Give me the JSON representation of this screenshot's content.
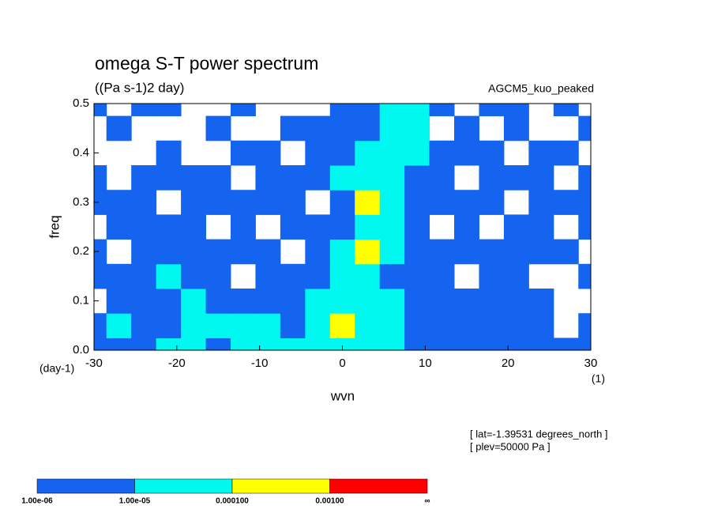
{
  "chart_data": {
    "type": "contour",
    "title": "omega S-T power spectrum",
    "subtitle": "((Pa s-1)2 day)",
    "annotation": "AGCM5_kuo_peaked",
    "x_label": "wvn",
    "y_label": "freq",
    "x_unit": "(1)",
    "y_unit": "(day-1)",
    "notes": [
      "[ lat=-1.39531 degrees_north ]",
      "[ plev=50000 Pa ]"
    ],
    "xlim": [
      -30,
      30
    ],
    "ylim": [
      0,
      0.5
    ],
    "xticks": [
      -30,
      -20,
      -10,
      0,
      10,
      20,
      30
    ],
    "yticks": [
      {
        "value": 0,
        "label": "0.0"
      },
      0.1,
      0.2,
      0.3,
      0.4,
      0.5
    ],
    "x": [
      -30,
      -27,
      -24,
      -21,
      -18,
      -15,
      -12,
      -9,
      -6,
      -3,
      0,
      3,
      6,
      9,
      12,
      15,
      18,
      21,
      24,
      27,
      30
    ],
    "y": [
      0,
      0.05,
      0.1,
      0.15,
      0.2,
      0.25,
      0.3,
      0.35,
      0.4,
      0.45,
      0.5
    ],
    "z": [
      [
        3e-06,
        3e-06,
        3e-06,
        3e-05,
        3e-05,
        3e-06,
        3e-05,
        3e-05,
        3e-05,
        3e-05,
        3e-05,
        3e-05,
        3e-05,
        3e-06,
        3e-06,
        3e-06,
        3e-06,
        3e-06,
        3e-06,
        3e-06,
        3e-06
      ],
      [
        3e-06,
        3e-05,
        3e-06,
        3e-06,
        3e-05,
        3e-05,
        3e-05,
        3e-05,
        3e-06,
        3e-05,
        0.0003,
        3e-05,
        3e-05,
        3e-06,
        3e-06,
        3e-06,
        3e-06,
        3e-06,
        3e-06,
        5e-07,
        3e-06
      ],
      [
        5e-07,
        3e-06,
        3e-06,
        3e-06,
        3e-05,
        3e-06,
        3e-06,
        3e-06,
        3e-06,
        3e-05,
        3e-05,
        3e-05,
        3e-05,
        3e-06,
        3e-06,
        3e-06,
        3e-06,
        3e-06,
        3e-06,
        5e-07,
        5e-07
      ],
      [
        3e-06,
        3e-06,
        3e-06,
        3e-05,
        3e-06,
        3e-06,
        5e-07,
        3e-06,
        3e-06,
        3e-06,
        3e-05,
        3e-05,
        3e-06,
        3e-06,
        3e-06,
        5e-07,
        3e-06,
        3e-06,
        5e-07,
        5e-07,
        3e-06
      ],
      [
        3e-06,
        5e-07,
        3e-06,
        3e-06,
        3e-06,
        3e-06,
        3e-06,
        3e-06,
        5e-07,
        3e-06,
        3e-05,
        0.0003,
        3e-05,
        3e-06,
        3e-06,
        3e-06,
        3e-06,
        3e-06,
        3e-06,
        3e-06,
        5e-07
      ],
      [
        5e-07,
        3e-06,
        3e-06,
        3e-06,
        3e-06,
        5e-07,
        3e-06,
        5e-07,
        3e-06,
        3e-06,
        3e-06,
        3e-05,
        3e-05,
        3e-06,
        5e-07,
        3e-06,
        5e-07,
        3e-06,
        3e-06,
        5e-07,
        3e-06
      ],
      [
        3e-06,
        3e-06,
        3e-06,
        5e-07,
        3e-06,
        3e-06,
        3e-06,
        3e-06,
        3e-06,
        5e-07,
        3e-06,
        0.0003,
        3e-05,
        3e-06,
        3e-06,
        3e-06,
        3e-06,
        5e-07,
        3e-06,
        3e-06,
        3e-06
      ],
      [
        3e-06,
        5e-07,
        3e-06,
        3e-06,
        3e-06,
        3e-06,
        5e-07,
        3e-06,
        3e-06,
        3e-06,
        3e-05,
        3e-05,
        3e-05,
        3e-06,
        3e-06,
        5e-07,
        3e-06,
        3e-06,
        3e-06,
        5e-07,
        3e-06
      ],
      [
        5e-07,
        5e-07,
        5e-07,
        3e-06,
        5e-07,
        5e-07,
        3e-06,
        3e-06,
        5e-07,
        3e-06,
        3e-06,
        3e-05,
        3e-05,
        3e-05,
        3e-06,
        3e-06,
        3e-06,
        5e-07,
        3e-06,
        3e-06,
        5e-07
      ],
      [
        5e-07,
        3e-06,
        5e-07,
        5e-07,
        5e-07,
        3e-06,
        5e-07,
        5e-07,
        3e-06,
        3e-06,
        3e-06,
        3e-06,
        3e-05,
        3e-05,
        5e-07,
        3e-06,
        5e-07,
        3e-06,
        5e-07,
        5e-07,
        3e-06
      ],
      [
        3e-06,
        5e-07,
        3e-06,
        3e-06,
        5e-07,
        5e-07,
        3e-06,
        5e-07,
        5e-07,
        5e-07,
        3e-06,
        3e-06,
        3e-05,
        3e-05,
        3e-06,
        5e-07,
        3e-06,
        3e-06,
        5e-07,
        3e-06,
        5e-07
      ]
    ],
    "colorbar": {
      "levels": [
        {
          "value": 1e-06,
          "label": "1.00e-06"
        },
        {
          "value": 1e-05,
          "label": "1.00e-05"
        },
        {
          "value": 0.0001,
          "label": "0.000100"
        },
        {
          "value": 0.001,
          "label": "0.00100"
        }
      ],
      "top_label": "∞",
      "colors": [
        "#1464f0",
        "#00f8f0",
        "#ffff00",
        "#ff0000"
      ]
    }
  }
}
